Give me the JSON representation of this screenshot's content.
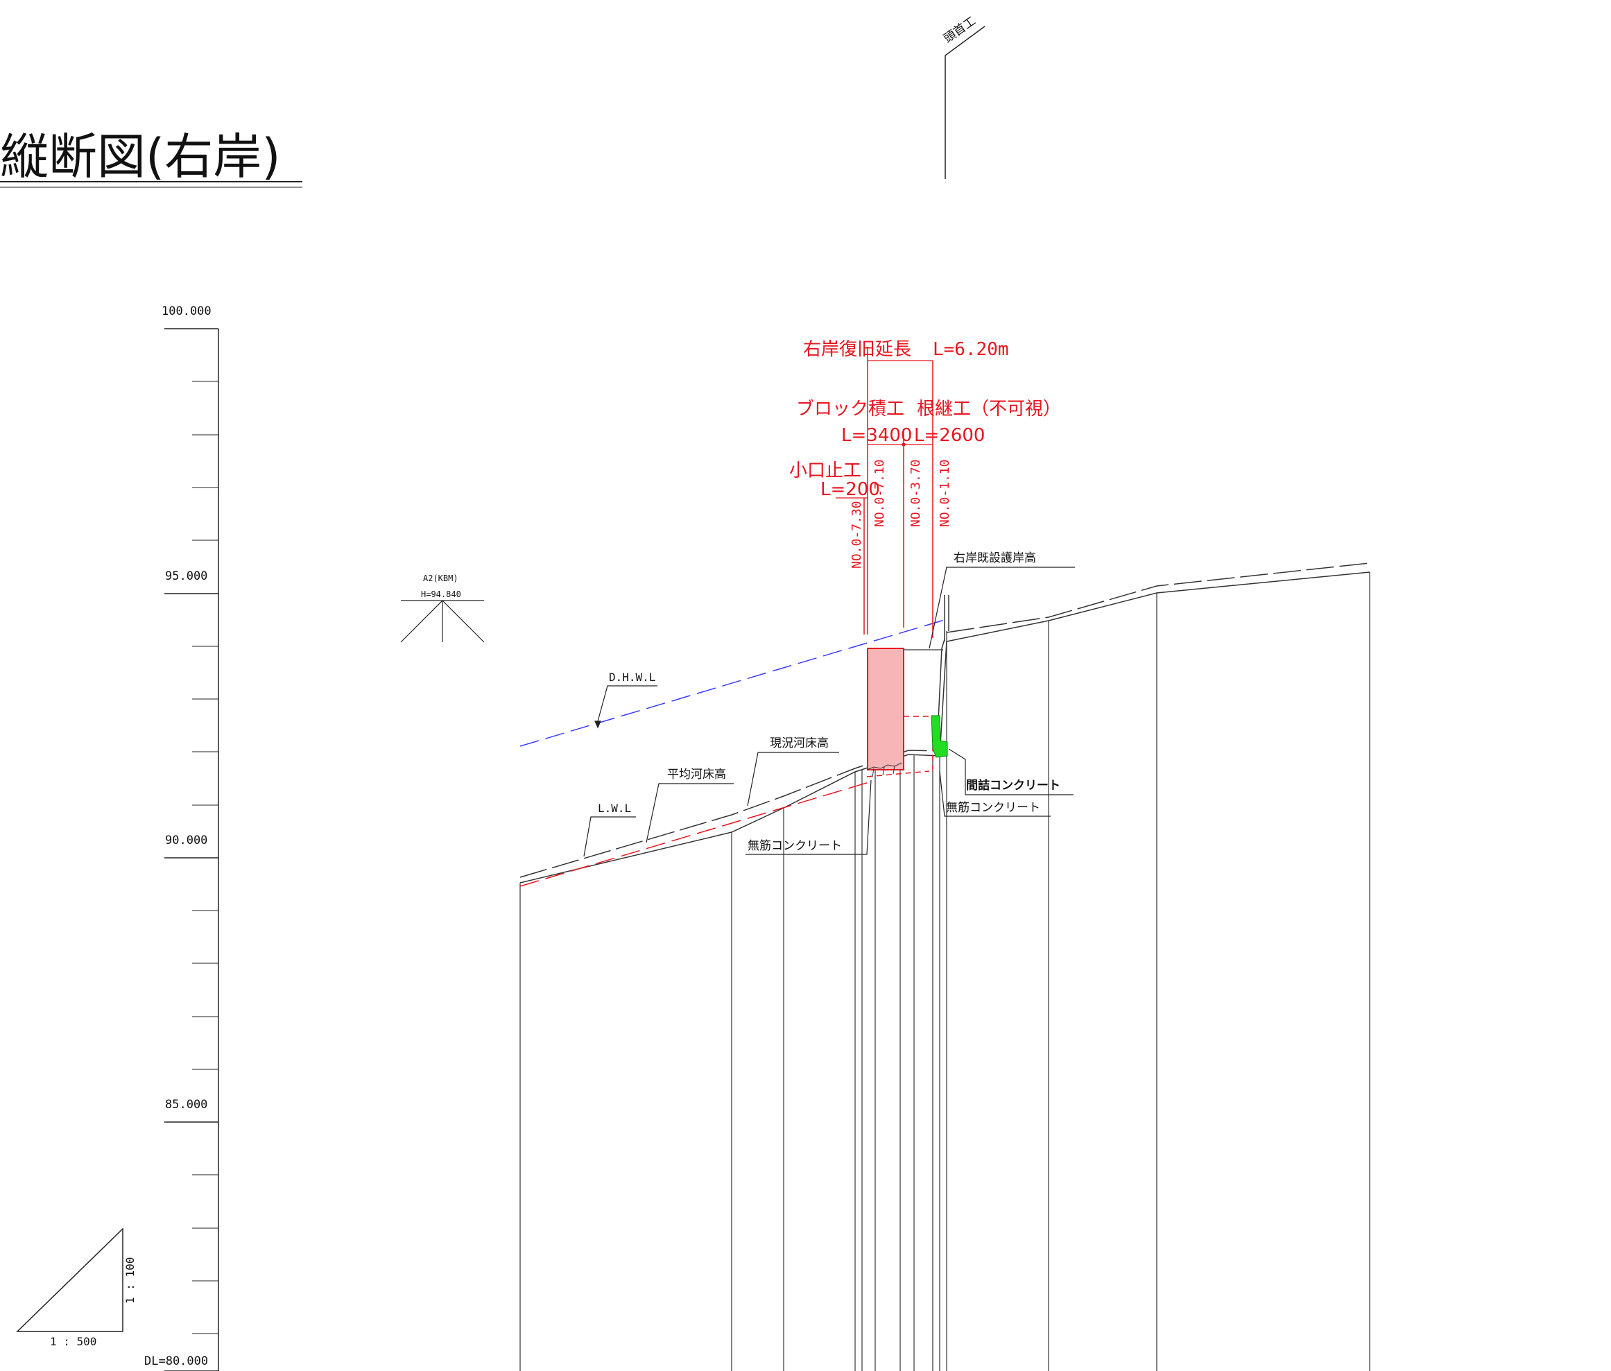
{
  "title": "縦断図(右岸)",
  "headworks_label": "頭首工",
  "scale": {
    "ticks": [
      "100.000",
      "95.000",
      "90.000",
      "85.000",
      "DL=80.000"
    ],
    "horizontal_ratio": "1 : 500",
    "vertical_ratio": "1 : 100"
  },
  "benchmark": {
    "name": "A2(KBM)",
    "height": "H=94.840"
  },
  "labels": {
    "dhwl": "D.H.W.L",
    "lwl": "L.W.L",
    "avg_riverbed": "平均河床高",
    "current_riverbed": "現況河床高",
    "existing_revetment": "右岸既設護岸高",
    "joint_concrete": "間詰コンクリート",
    "plain_concrete_1": "無筋コンクリート",
    "plain_concrete_2": "無筋コンクリート"
  },
  "restoration": {
    "total_label": "右岸復旧延長",
    "total_length": "L=6.20m",
    "block_label": "ブロック積工",
    "block_length": "L=3400",
    "underpin_label": "根継工（不可視）",
    "underpin_length": "L=2600",
    "end_stop_label": "小口止工",
    "end_stop_length": "L=200"
  },
  "stations": [
    "NO.0-7.30",
    "NO.0-7.10",
    "NO.0-3.70",
    "NO.0-1.10"
  ],
  "colors": {
    "line": "#222222",
    "red": "#e8141e",
    "red_fill": "#f7b5b8",
    "blue": "#3a3aff",
    "green": "#22dd22"
  }
}
